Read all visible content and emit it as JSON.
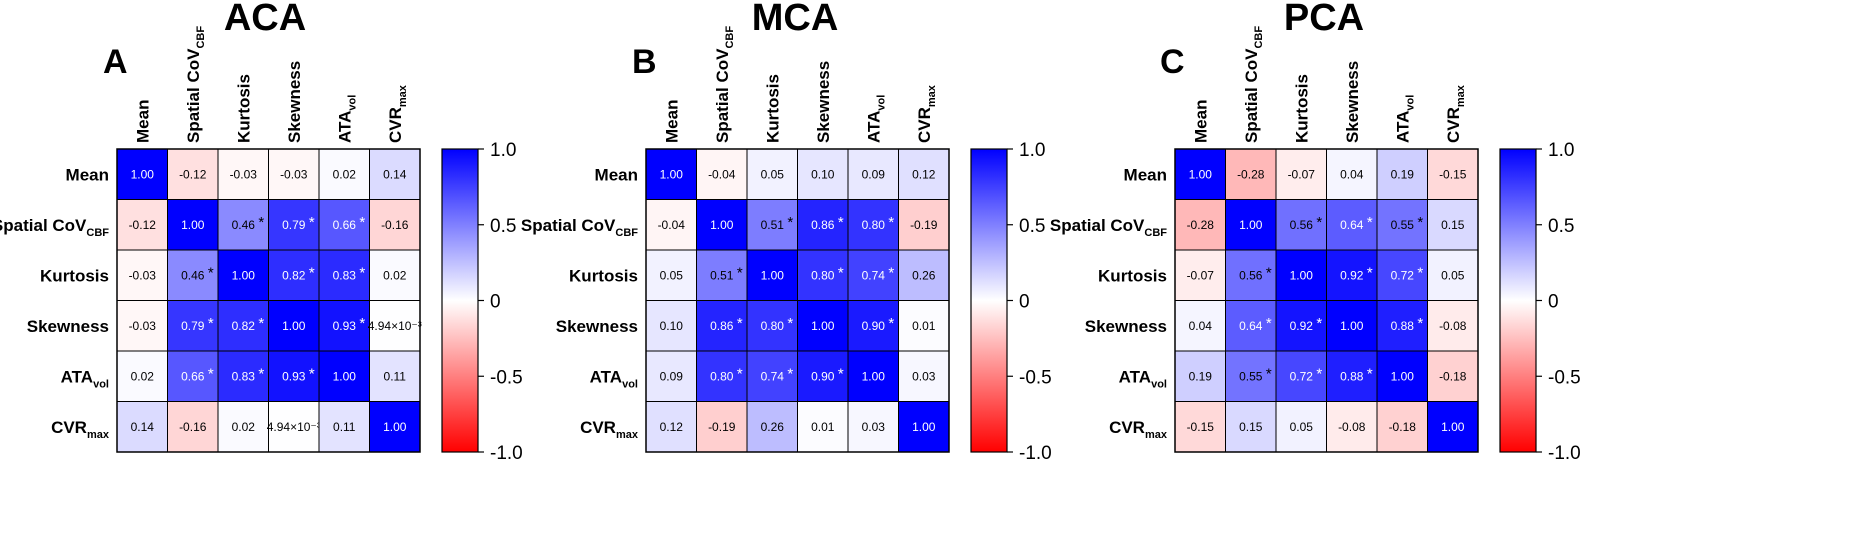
{
  "chart_data": [
    {
      "type": "heatmap",
      "panel": "A",
      "title": "ACA",
      "labels": [
        {
          "main": "Mean",
          "sub": ""
        },
        {
          "main": "Spatial CoV",
          "sub": "CBF"
        },
        {
          "main": "Kurtosis",
          "sub": ""
        },
        {
          "main": "Skewness",
          "sub": ""
        },
        {
          "main": "ATA",
          "sub": "vol"
        },
        {
          "main": "CVR",
          "sub": "max"
        }
      ],
      "values": [
        [
          1.0,
          -0.12,
          -0.03,
          -0.03,
          0.02,
          0.14
        ],
        [
          -0.12,
          1.0,
          0.46,
          0.79,
          0.66,
          -0.16
        ],
        [
          -0.03,
          0.46,
          1.0,
          0.82,
          0.83,
          0.02
        ],
        [
          -0.03,
          0.79,
          0.82,
          1.0,
          0.93,
          0.00494
        ],
        [
          0.02,
          0.66,
          0.83,
          0.93,
          1.0,
          0.11
        ],
        [
          0.14,
          -0.16,
          0.02,
          0.00494,
          0.11,
          1.0
        ]
      ],
      "display": [
        [
          "1.00",
          "-0.12",
          "-0.03",
          "-0.03",
          "0.02",
          "0.14"
        ],
        [
          "-0.12",
          "1.00",
          "0.46",
          "0.79",
          "0.66",
          "-0.16"
        ],
        [
          "-0.03",
          "0.46",
          "1.00",
          "0.82",
          "0.83",
          "0.02"
        ],
        [
          "-0.03",
          "0.79",
          "0.82",
          "1.00",
          "0.93",
          "4.94×10⁻³"
        ],
        [
          "0.02",
          "0.66",
          "0.83",
          "0.93",
          "1.00",
          "0.11"
        ],
        [
          "0.14",
          "-0.16",
          "0.02",
          "4.94×10⁻³",
          "0.11",
          "1.00"
        ]
      ],
      "significant": [
        [
          false,
          false,
          false,
          false,
          false,
          false
        ],
        [
          false,
          false,
          true,
          true,
          true,
          false
        ],
        [
          false,
          true,
          false,
          true,
          true,
          false
        ],
        [
          false,
          true,
          true,
          false,
          true,
          false
        ],
        [
          false,
          true,
          true,
          true,
          false,
          false
        ],
        [
          false,
          false,
          false,
          false,
          false,
          false
        ]
      ],
      "significance_marker": "*"
    },
    {
      "type": "heatmap",
      "panel": "B",
      "title": "MCA",
      "labels": [
        {
          "main": "Mean",
          "sub": ""
        },
        {
          "main": "Spatial CoV",
          "sub": "CBF"
        },
        {
          "main": "Kurtosis",
          "sub": ""
        },
        {
          "main": "Skewness",
          "sub": ""
        },
        {
          "main": "ATA",
          "sub": "vol"
        },
        {
          "main": "CVR",
          "sub": "max"
        }
      ],
      "values": [
        [
          1.0,
          -0.04,
          0.05,
          0.1,
          0.09,
          0.12
        ],
        [
          -0.04,
          1.0,
          0.51,
          0.86,
          0.8,
          -0.19
        ],
        [
          0.05,
          0.51,
          1.0,
          0.8,
          0.74,
          0.26
        ],
        [
          0.1,
          0.86,
          0.8,
          1.0,
          0.9,
          0.01
        ],
        [
          0.09,
          0.8,
          0.74,
          0.9,
          1.0,
          0.03
        ],
        [
          0.12,
          -0.19,
          0.26,
          0.01,
          0.03,
          1.0
        ]
      ],
      "display": [
        [
          "1.00",
          "-0.04",
          "0.05",
          "0.10",
          "0.09",
          "0.12"
        ],
        [
          "-0.04",
          "1.00",
          "0.51",
          "0.86",
          "0.80",
          "-0.19"
        ],
        [
          "0.05",
          "0.51",
          "1.00",
          "0.80",
          "0.74",
          "0.26"
        ],
        [
          "0.10",
          "0.86",
          "0.80",
          "1.00",
          "0.90",
          "0.01"
        ],
        [
          "0.09",
          "0.80",
          "0.74",
          "0.90",
          "1.00",
          "0.03"
        ],
        [
          "0.12",
          "-0.19",
          "0.26",
          "0.01",
          "0.03",
          "1.00"
        ]
      ],
      "significant": [
        [
          false,
          false,
          false,
          false,
          false,
          false
        ],
        [
          false,
          false,
          true,
          true,
          true,
          false
        ],
        [
          false,
          true,
          false,
          true,
          true,
          false
        ],
        [
          false,
          true,
          true,
          false,
          true,
          false
        ],
        [
          false,
          true,
          true,
          true,
          false,
          false
        ],
        [
          false,
          false,
          false,
          false,
          false,
          false
        ]
      ],
      "significance_marker": "*"
    },
    {
      "type": "heatmap",
      "panel": "C",
      "title": "PCA",
      "labels": [
        {
          "main": "Mean",
          "sub": ""
        },
        {
          "main": "Spatial CoV",
          "sub": "CBF"
        },
        {
          "main": "Kurtosis",
          "sub": ""
        },
        {
          "main": "Skewness",
          "sub": ""
        },
        {
          "main": "ATA",
          "sub": "vol"
        },
        {
          "main": "CVR",
          "sub": "max"
        }
      ],
      "values": [
        [
          1.0,
          -0.28,
          -0.07,
          0.04,
          0.19,
          -0.15
        ],
        [
          -0.28,
          1.0,
          0.56,
          0.64,
          0.55,
          0.15
        ],
        [
          -0.07,
          0.56,
          1.0,
          0.92,
          0.72,
          0.05
        ],
        [
          0.04,
          0.64,
          0.92,
          1.0,
          0.88,
          -0.08
        ],
        [
          0.19,
          0.55,
          0.72,
          0.88,
          1.0,
          -0.18
        ],
        [
          -0.15,
          0.15,
          0.05,
          -0.08,
          -0.18,
          1.0
        ]
      ],
      "display": [
        [
          "1.00",
          "-0.28",
          "-0.07",
          "0.04",
          "0.19",
          "-0.15"
        ],
        [
          "-0.28",
          "1.00",
          "0.56",
          "0.64",
          "0.55",
          "0.15"
        ],
        [
          "-0.07",
          "0.56",
          "1.00",
          "0.92",
          "0.72",
          "0.05"
        ],
        [
          "0.04",
          "0.64",
          "0.92",
          "1.00",
          "0.88",
          "-0.08"
        ],
        [
          "0.19",
          "0.55",
          "0.72",
          "0.88",
          "1.00",
          "-0.18"
        ],
        [
          "-0.15",
          "0.15",
          "0.05",
          "-0.08",
          "-0.18",
          "1.00"
        ]
      ],
      "significant": [
        [
          false,
          false,
          false,
          false,
          false,
          false
        ],
        [
          false,
          false,
          true,
          true,
          true,
          false
        ],
        [
          false,
          true,
          false,
          true,
          true,
          false
        ],
        [
          false,
          true,
          true,
          false,
          true,
          false
        ],
        [
          false,
          true,
          true,
          true,
          false,
          false
        ],
        [
          false,
          false,
          false,
          false,
          false,
          false
        ]
      ],
      "significance_marker": "*"
    }
  ],
  "colorbar": {
    "range": [
      -1.0,
      1.0
    ],
    "ticks": [
      1.0,
      0.5,
      0,
      -0.5,
      -1.0
    ],
    "tick_labels": [
      "1.0",
      "0.5",
      "0",
      "-0.5",
      "-1.0"
    ],
    "color_low": "#ff0000",
    "color_mid": "#ffffff",
    "color_high": "#0000ff"
  }
}
